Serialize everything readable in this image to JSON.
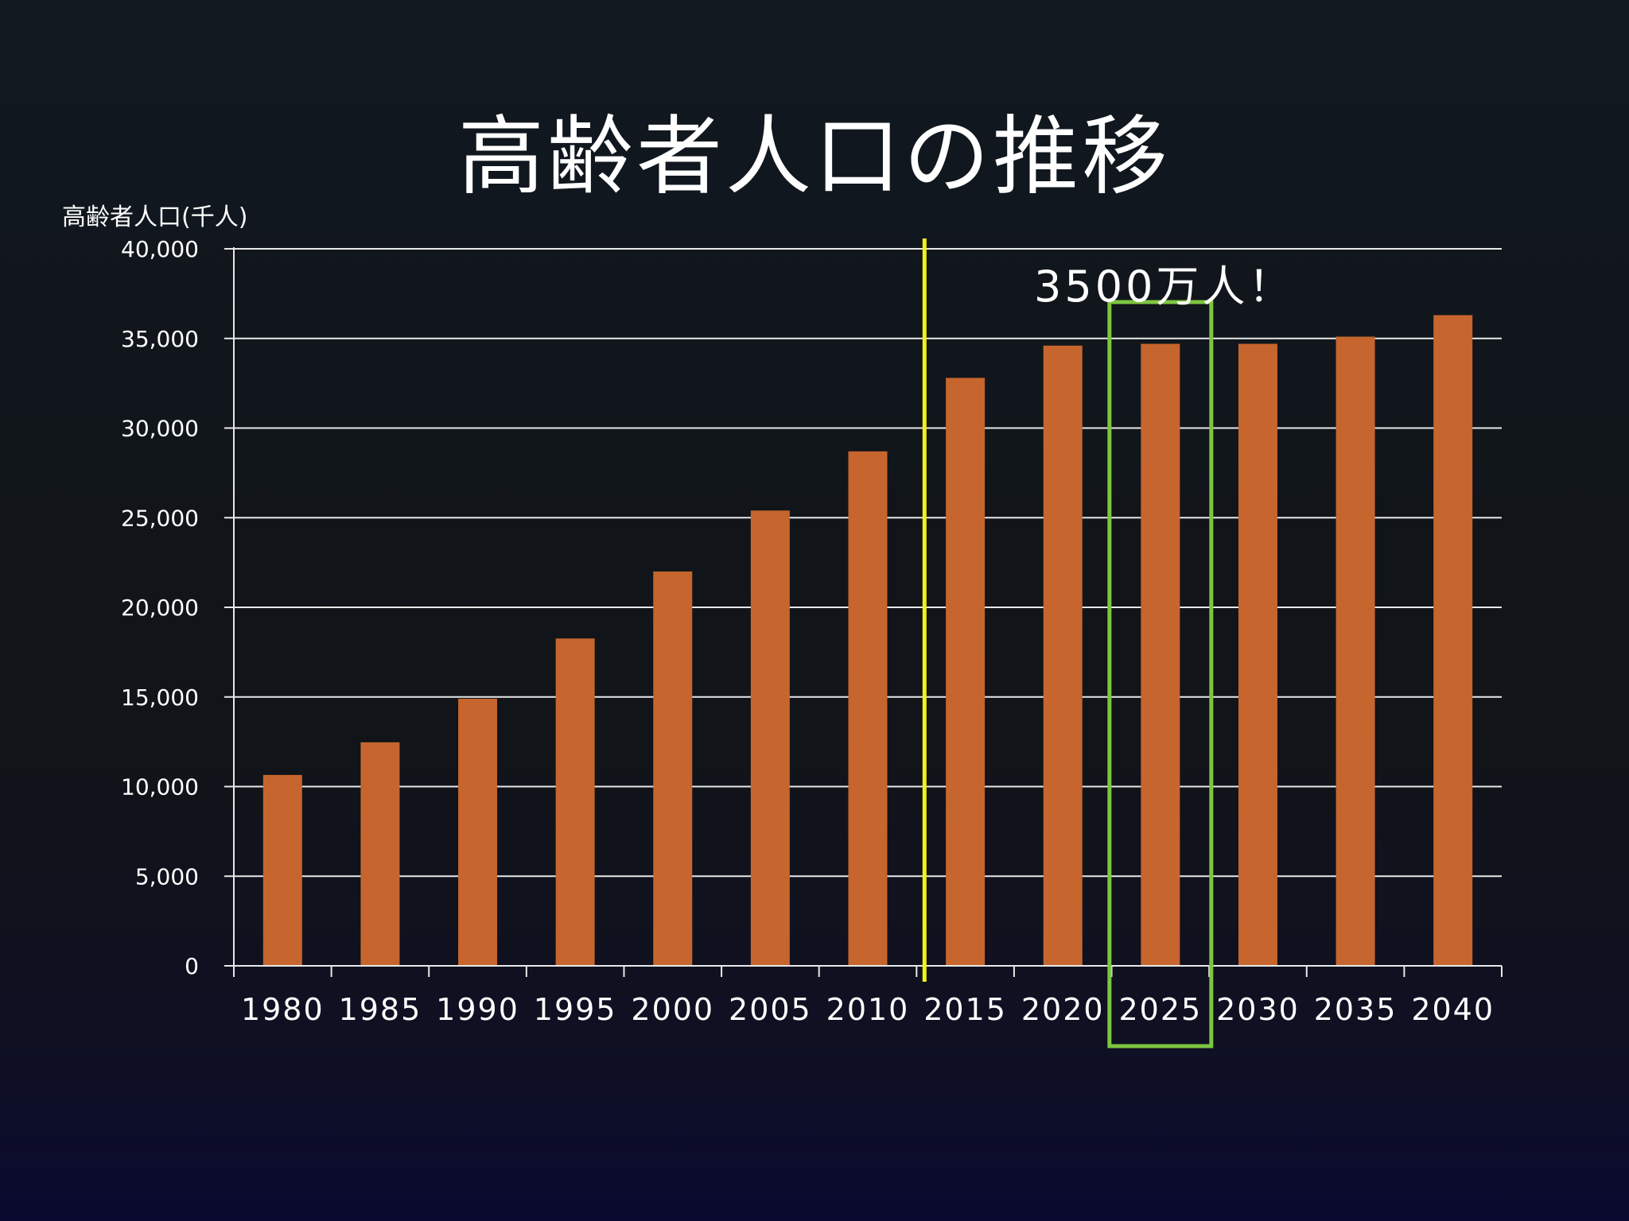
{
  "slide": {
    "title": "高齢者人口の推移",
    "callout": "3500万人！"
  },
  "chart_data": {
    "type": "bar",
    "title": "高齢者人口の推移",
    "ylabel": "高齢者人口(千人)",
    "xlabel": "",
    "categories": [
      "1980",
      "1985",
      "1990",
      "1995",
      "2000",
      "2005",
      "2010",
      "2015",
      "2020",
      "2025",
      "2030",
      "2035",
      "2040"
    ],
    "series": [
      {
        "values": [
          10650,
          12470,
          14900,
          18260,
          22000,
          25400,
          28700,
          32800,
          34600,
          34700,
          34700,
          35100,
          36300
        ]
      }
    ],
    "ylim": [
      0,
      40000
    ],
    "yticks": [
      0,
      5000,
      10000,
      15000,
      20000,
      25000,
      30000,
      35000,
      40000
    ],
    "ytick_labels": [
      "0",
      "5,000",
      "10,000",
      "15,000",
      "20,000",
      "25,000",
      "30,000",
      "35,000",
      "40,000"
    ],
    "grid": true,
    "annotations": {
      "divider_after_category": "2010",
      "highlight_category": "2025",
      "highlight_label": "3500万人！"
    },
    "colors": {
      "bar": "#c6652e",
      "grid": "#e8e8e8",
      "divider": "#f2f21a",
      "highlight": "#7dc63f"
    }
  }
}
